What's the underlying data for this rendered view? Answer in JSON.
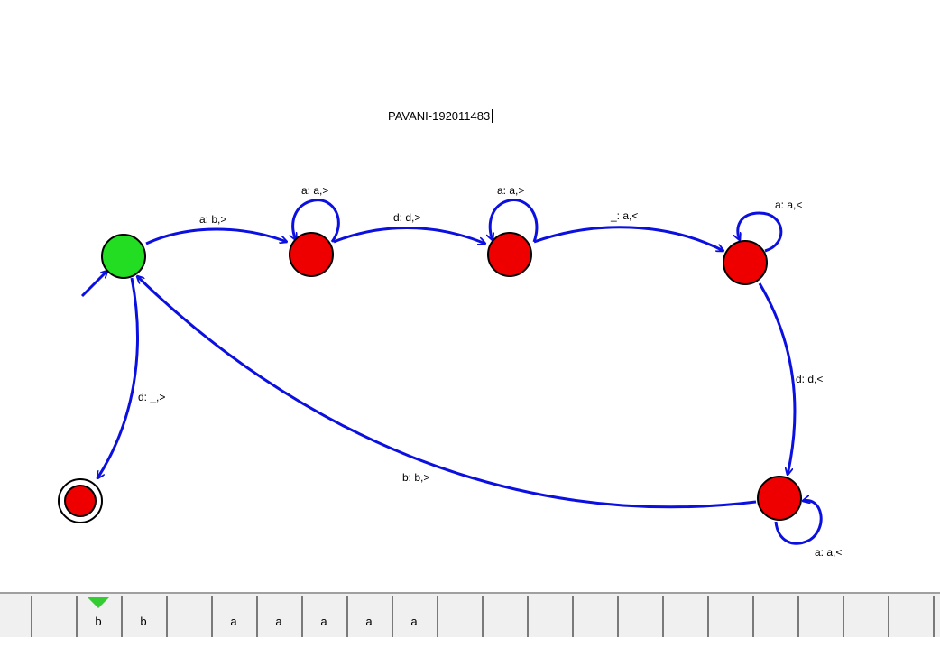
{
  "caption": "PAVANI-192011483",
  "colors": {
    "edge": "#0b10e0",
    "start_state": "#22dd22",
    "state": "#ee0000",
    "head": "#33cc33"
  },
  "states": [
    {
      "id": "q0",
      "initial": true,
      "final": false
    },
    {
      "id": "q1",
      "initial": false,
      "final": false
    },
    {
      "id": "q2",
      "initial": false,
      "final": false
    },
    {
      "id": "q3",
      "initial": false,
      "final": false
    },
    {
      "id": "q4",
      "initial": false,
      "final": false
    },
    {
      "id": "q5",
      "initial": false,
      "final": true
    }
  ],
  "transitions": [
    {
      "from": "q0",
      "to": "q1",
      "label": "a: b,>"
    },
    {
      "from": "q1",
      "to": "q1",
      "label": "a: a,>"
    },
    {
      "from": "q1",
      "to": "q2",
      "label": "d: d,>"
    },
    {
      "from": "q2",
      "to": "q2",
      "label": "a: a,>"
    },
    {
      "from": "q2",
      "to": "q3",
      "label": "_: a,<"
    },
    {
      "from": "q3",
      "to": "q3",
      "label": "a: a,<"
    },
    {
      "from": "q3",
      "to": "q4",
      "label": "d: d,<"
    },
    {
      "from": "q4",
      "to": "q4",
      "label": "a: a,<"
    },
    {
      "from": "q4",
      "to": "q0",
      "label": "b: b,>"
    },
    {
      "from": "q0",
      "to": "q5",
      "label": "d: _,>"
    }
  ],
  "tape": {
    "cells": [
      "",
      "",
      "b",
      "b",
      "",
      "a",
      "a",
      "a",
      "a",
      "a",
      "",
      "",
      "",
      "",
      "",
      "",
      "",
      "",
      "",
      "",
      "",
      ""
    ],
    "head_index": 2
  }
}
